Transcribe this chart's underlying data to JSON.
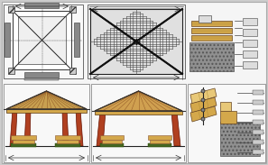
{
  "figure_bg": "#cccccc",
  "panel_bg": "#ffffff",
  "wood_tan": "#d4a84b",
  "wood_orange": "#c87832",
  "wood_light": "#e8c878",
  "post_red": "#b04020",
  "stone_gray": "#909090",
  "line_dark": "#111111",
  "line_med": "#444444",
  "dim_line": "#333333",
  "green_base": "#446622",
  "bench_seat": "#d4a84b",
  "rafter_brown": "#8B5020",
  "roof_tan": "#c8a050"
}
